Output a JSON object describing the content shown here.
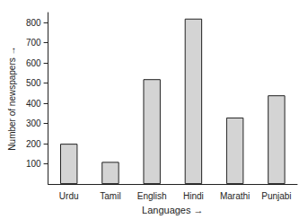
{
  "chart_data": {
    "type": "bar",
    "x_label": "Languages →",
    "y_label": "Number of newspapers →",
    "categories": [
      "Urdu",
      "Tamil",
      "English",
      "Hindi",
      "Marathi",
      "Punjabi"
    ],
    "values": [
      200,
      110,
      520,
      820,
      330,
      440
    ],
    "color": "#d4d4d4",
    "ylim": [
      0,
      850
    ],
    "yticks": [
      100,
      200,
      300,
      400,
      500,
      600,
      700,
      800
    ],
    "grid": false
  }
}
